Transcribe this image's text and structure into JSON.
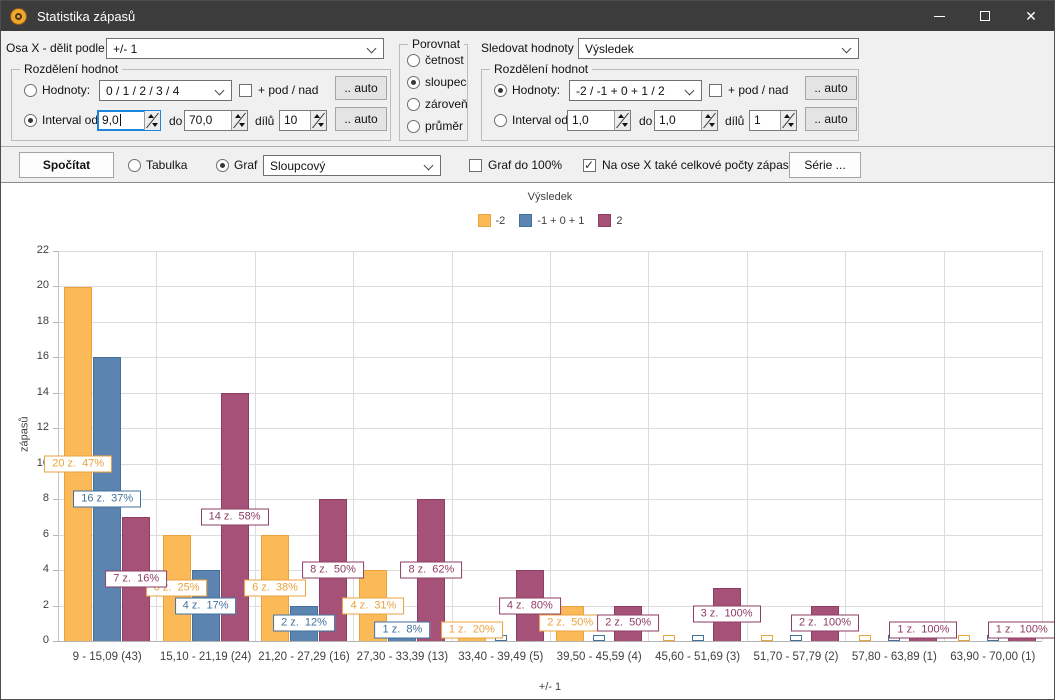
{
  "titlebar": {
    "title": "Statistika zápasů",
    "icons": [
      "app-icon",
      "minimize-icon",
      "maximize-icon",
      "close-icon"
    ]
  },
  "toolbar": {
    "osa_x": {
      "label": "Osa X - dělit podle",
      "value": "+/- 1"
    },
    "porovnat": {
      "title": "Porovnat",
      "options": [
        {
          "label": "četnost",
          "selected": false
        },
        {
          "label": "sloupec",
          "selected": true
        },
        {
          "label": "zároveň",
          "selected": false
        },
        {
          "label": "průměr",
          "selected": false
        }
      ]
    },
    "sledovat": {
      "label": "Sledovat hodnoty",
      "value": "Výsledek"
    },
    "rozdeleni_left": {
      "title": "Rozdělení hodnot",
      "hodnoty": {
        "label": "Hodnoty:",
        "selected": false,
        "value": "0 / 1 / 2 / 3 / 4"
      },
      "pod_nad": {
        "label": "+ pod / nad",
        "checked": false
      },
      "auto_label": ".. auto",
      "interval": {
        "label": "Interval od",
        "selected": true,
        "od": "9,0",
        "do_label": "do",
        "do": "70,0",
        "dilu_label": "dílů",
        "dilu": "10"
      }
    },
    "rozdeleni_right": {
      "title": "Rozdělení hodnot",
      "hodnoty": {
        "label": "Hodnoty:",
        "selected": true,
        "value": "-2 / -1 + 0 + 1 / 2"
      },
      "pod_nad": {
        "label": "+ pod / nad",
        "checked": false
      },
      "auto_label": ".. auto",
      "interval": {
        "label": "Interval od",
        "selected": false,
        "od": "1,0",
        "do_label": "do",
        "do": "1,0",
        "dilu_label": "dílů",
        "dilu": "1"
      }
    },
    "actions": {
      "spocitat": "Spočítat",
      "tabulka": {
        "label": "Tabulka",
        "selected": false
      },
      "graf": {
        "label": "Graf",
        "selected": true
      },
      "graf_typ": "Sloupcový",
      "graf_100": {
        "label": "Graf do 100%",
        "checked": false
      },
      "pocty": {
        "label": "Na ose X také celkové počty zápasů",
        "checked": true
      },
      "serie": "Série ..."
    }
  },
  "chart_data": {
    "type": "bar",
    "title": "Výsledek",
    "xlabel": "+/- 1",
    "ylabel": "zápasů",
    "ylim": [
      0,
      22
    ],
    "ytick_step": 2,
    "grid": true,
    "legend_position": "top",
    "categories": [
      "9 - 15,09 (43)",
      "15,10 - 21,19 (24)",
      "21,20 - 27,29 (16)",
      "27,30 - 33,39 (13)",
      "33,40 - 39,49 (5)",
      "39,50 - 45,59 (4)",
      "45,60 - 51,69 (3)",
      "51,70 - 57,79 (2)",
      "57,80 - 63,89 (1)",
      "63,90 - 70,00 (1)"
    ],
    "series": [
      {
        "name": "-2",
        "color": "#FBB957",
        "border": "#E9A23C",
        "values": [
          20,
          6,
          6,
          4,
          1,
          2,
          0,
          0,
          0,
          0
        ],
        "labels": [
          "20 z.  47%",
          "6 z.  25%",
          "6 z.  38%",
          "4 z.  31%",
          "1 z.  20%",
          "2 z.  50%",
          null,
          null,
          null,
          null
        ]
      },
      {
        "name": "-1 + 0 + 1",
        "color": "#5B84B1",
        "border": "#41719C",
        "values": [
          16,
          4,
          2,
          1,
          0,
          0,
          0,
          0,
          0,
          0
        ],
        "labels": [
          "16 z.  37%",
          "4 z.  17%",
          "2 z.  12%",
          "1 z.  8%",
          null,
          null,
          null,
          null,
          null,
          null
        ]
      },
      {
        "name": "2",
        "color": "#A65278",
        "border": "#8E3D63",
        "values": [
          7,
          14,
          8,
          8,
          4,
          2,
          3,
          2,
          1,
          1
        ],
        "labels": [
          "7 z.  16%",
          "14 z.  58%",
          "8 z.  50%",
          "8 z.  62%",
          "4 z.  80%",
          "2 z.  50%",
          "3 z.  100%",
          "2 z.  100%",
          "1 z.  100%",
          "1 z.  100%"
        ]
      }
    ]
  }
}
